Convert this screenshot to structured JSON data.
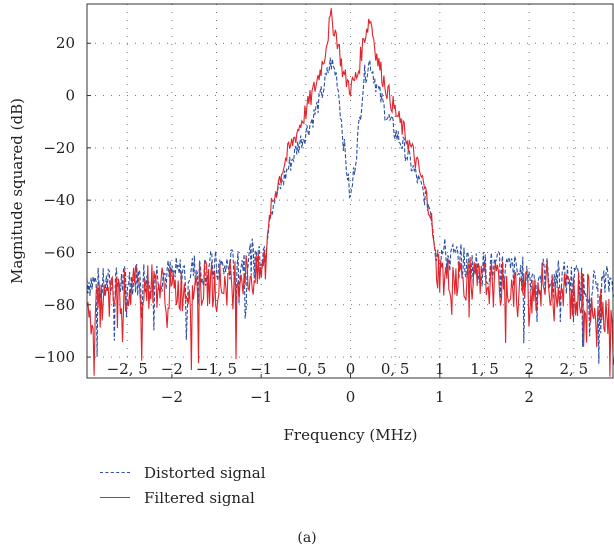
{
  "chart_data": {
    "type": "line",
    "xlabel": "Frequency (MHz)",
    "ylabel": "Magnitude squared (dB)",
    "xlim": [
      -2.95,
      2.95
    ],
    "ylim": [
      -108,
      35
    ],
    "x_ticks": [
      -2,
      -1,
      0,
      1,
      2
    ],
    "x_tick_labels": [
      "−2",
      "−1",
      "0",
      "1",
      "2"
    ],
    "x_ticks_inner": [
      -2.5,
      -2,
      -1.5,
      -1,
      -0.5,
      0,
      0.5,
      1,
      1.5,
      2,
      2.5
    ],
    "x_tick_labels_inner": [
      "−2, 5",
      "−2",
      "−1, 5",
      "−1",
      "−0, 5",
      "0",
      "0, 5",
      "1",
      "1, 5",
      "2",
      "2, 5"
    ],
    "y_ticks": [
      -100,
      -80,
      -60,
      -40,
      -20,
      0,
      20
    ],
    "y_tick_labels": [
      "−100",
      "−80",
      "−60",
      "−40",
      "−20",
      "0",
      "20"
    ],
    "grid": true,
    "legend_position": "below",
    "series": [
      {
        "name": "Distorted signal",
        "color": "#2b4fa3",
        "style": "dashed",
        "x": [
          -2.95,
          -2.8,
          -2.6,
          -2.4,
          -2.2,
          -2.0,
          -1.8,
          -1.6,
          -1.4,
          -1.2,
          -1.05,
          -0.95,
          -0.9,
          -0.8,
          -0.7,
          -0.6,
          -0.5,
          -0.4,
          -0.3,
          -0.22,
          -0.15,
          -0.08,
          0.0,
          0.08,
          0.15,
          0.22,
          0.3,
          0.4,
          0.5,
          0.6,
          0.7,
          0.8,
          0.9,
          0.95,
          1.05,
          1.2,
          1.4,
          1.6,
          1.8,
          2.0,
          2.2,
          2.4,
          2.6,
          2.8,
          2.95
        ],
        "y": [
          -70,
          -73,
          -72,
          -70,
          -68,
          -69,
          -67,
          -66,
          -66,
          -63,
          -61,
          -58,
          -44,
          -36,
          -28,
          -20,
          -14,
          -7,
          3,
          13,
          7,
          -17,
          -40,
          -17,
          7,
          13,
          3,
          -7,
          -14,
          -20,
          -28,
          -36,
          -44,
          -58,
          -61,
          -63,
          -66,
          -66,
          -67,
          -69,
          -68,
          -70,
          -72,
          -73,
          -70
        ]
      },
      {
        "name": "Filtered signal",
        "color": "#e0242c",
        "style": "solid",
        "x": [
          -2.95,
          -2.8,
          -2.6,
          -2.4,
          -2.2,
          -2.0,
          -1.8,
          -1.6,
          -1.4,
          -1.2,
          -1.05,
          -0.95,
          -0.9,
          -0.8,
          -0.7,
          -0.6,
          -0.5,
          -0.4,
          -0.3,
          -0.22,
          -0.15,
          -0.08,
          0.0,
          0.08,
          0.15,
          0.22,
          0.3,
          0.4,
          0.5,
          0.6,
          0.7,
          0.8,
          0.9,
          0.95,
          1.05,
          1.2,
          1.4,
          1.6,
          1.8,
          2.0,
          2.2,
          2.4,
          2.6,
          2.8,
          2.95
        ],
        "y": [
          -85,
          -80,
          -76,
          -74,
          -72,
          -75,
          -73,
          -72,
          -72,
          -68,
          -70,
          -64,
          -45,
          -32,
          -22,
          -14,
          -6,
          3,
          14,
          30,
          22,
          8,
          3,
          8,
          22,
          30,
          14,
          3,
          -6,
          -14,
          -22,
          -32,
          -45,
          -64,
          -70,
          -68,
          -72,
          -72,
          -73,
          -75,
          -72,
          -74,
          -76,
          -80,
          -85
        ]
      }
    ]
  },
  "legend": {
    "items": [
      {
        "label": "Distorted signal",
        "color": "#2b4fa3",
        "style": "dashed"
      },
      {
        "label": "Filtered signal",
        "color": "#e0242c",
        "style": "solid"
      }
    ]
  },
  "caption": "(a)"
}
